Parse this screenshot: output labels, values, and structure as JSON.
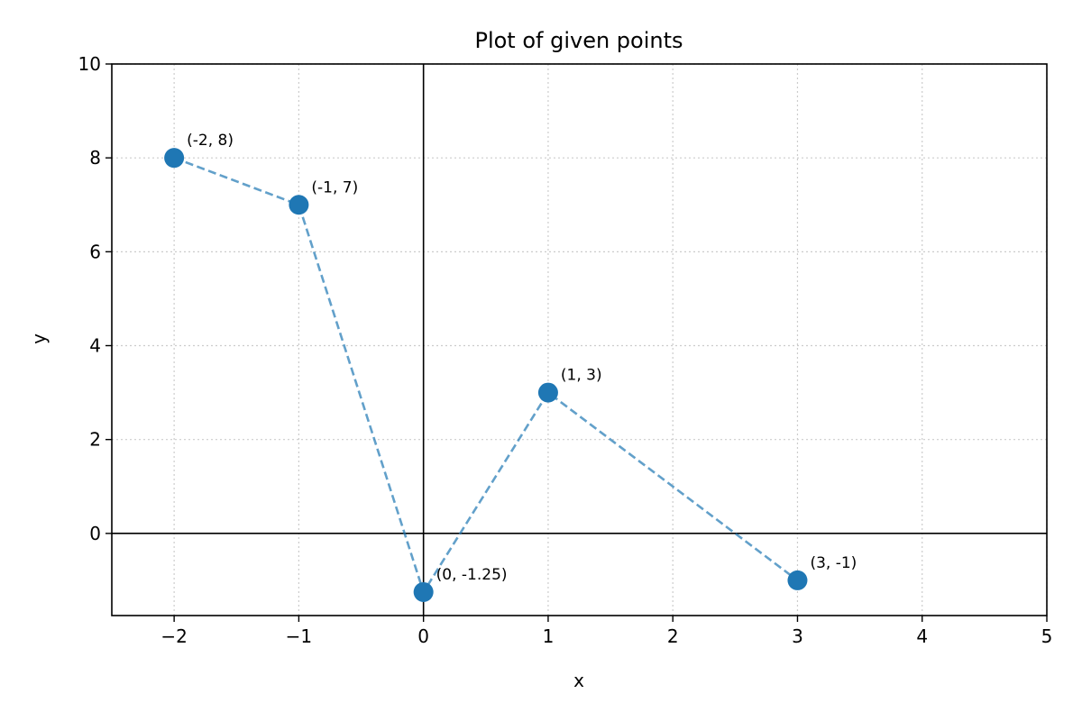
{
  "chart_data": {
    "type": "scatter",
    "title": "Plot of given points",
    "xlabel": "x",
    "ylabel": "y",
    "xlim": [
      -2.5,
      5
    ],
    "ylim": [
      -1.75,
      10
    ],
    "xticks": [
      -2,
      -1,
      0,
      1,
      2,
      3,
      4,
      5
    ],
    "xtick_labels": [
      "−2",
      "−1",
      "0",
      "1",
      "2",
      "3",
      "4",
      "5"
    ],
    "yticks": [
      0,
      2,
      4,
      6,
      8,
      10
    ],
    "ytick_labels": [
      "0",
      "2",
      "4",
      "6",
      "8",
      "10"
    ],
    "grid": true,
    "connected": true,
    "series": [
      {
        "x": [
          -2,
          -1,
          0,
          1,
          3
        ],
        "y": [
          8,
          7,
          -1.25,
          3,
          -1
        ],
        "labels": [
          "(-2, 8)",
          "(-1, 7)",
          "(0, -1.25)",
          "(1, 3)",
          "(3, -1)"
        ]
      }
    ],
    "colors": {
      "marker": "#1f77b4",
      "line": "#1f77b4",
      "grid": "#cccccc",
      "axes": "#000000"
    }
  }
}
